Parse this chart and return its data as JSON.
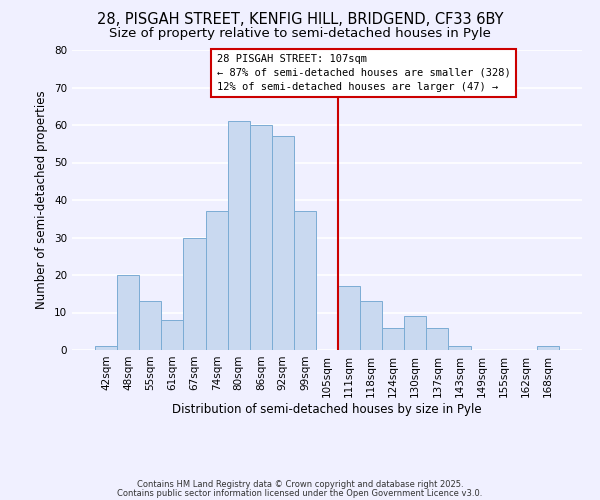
{
  "title_line1": "28, PISGAH STREET, KENFIG HILL, BRIDGEND, CF33 6BY",
  "title_line2": "Size of property relative to semi-detached houses in Pyle",
  "xlabel": "Distribution of semi-detached houses by size in Pyle",
  "ylabel": "Number of semi-detached properties",
  "bar_labels": [
    "42sqm",
    "48sqm",
    "55sqm",
    "61sqm",
    "67sqm",
    "74sqm",
    "80sqm",
    "86sqm",
    "92sqm",
    "99sqm",
    "105sqm",
    "111sqm",
    "118sqm",
    "124sqm",
    "130sqm",
    "137sqm",
    "143sqm",
    "149sqm",
    "155sqm",
    "162sqm",
    "168sqm"
  ],
  "bar_values": [
    1,
    20,
    13,
    8,
    30,
    37,
    61,
    60,
    57,
    37,
    0,
    17,
    13,
    6,
    9,
    6,
    1,
    0,
    0,
    0,
    1
  ],
  "bar_color": "#c9d9f0",
  "bar_edgecolor": "#7bacd4",
  "vline_x": 10.5,
  "vline_color": "#cc0000",
  "ylim": [
    0,
    80
  ],
  "yticks": [
    0,
    10,
    20,
    30,
    40,
    50,
    60,
    70,
    80
  ],
  "annotation_title": "28 PISGAH STREET: 107sqm",
  "annotation_line1": "← 87% of semi-detached houses are smaller (328)",
  "annotation_line2": "12% of semi-detached houses are larger (47) →",
  "footer_line1": "Contains HM Land Registry data © Crown copyright and database right 2025.",
  "footer_line2": "Contains public sector information licensed under the Open Government Licence v3.0.",
  "background_color": "#f0f0ff",
  "grid_color": "#ffffff",
  "title_fontsize": 10.5,
  "subtitle_fontsize": 9.5,
  "tick_fontsize": 7.5,
  "label_fontsize": 8.5
}
